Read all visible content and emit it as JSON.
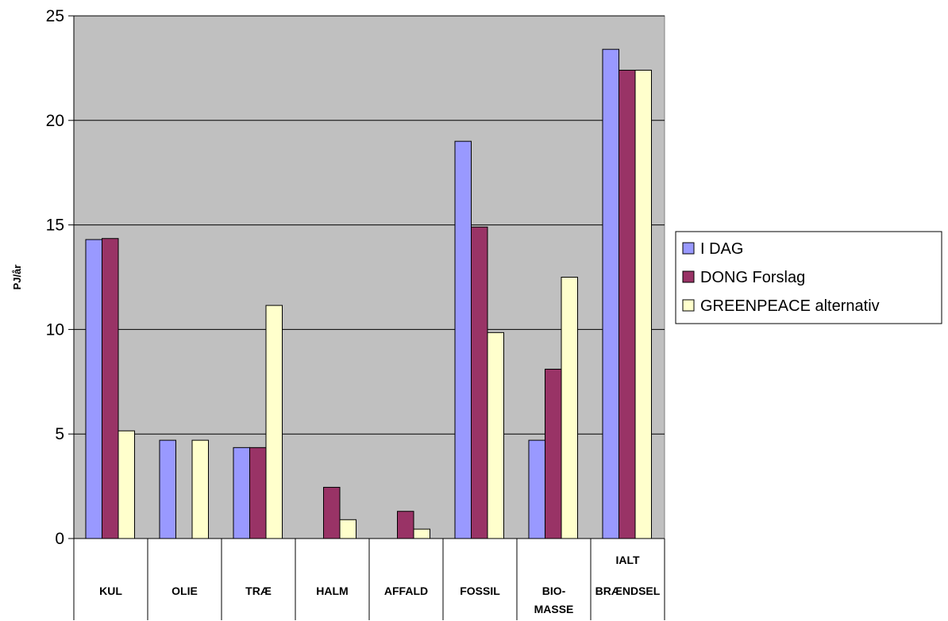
{
  "chart_data": {
    "type": "bar",
    "title": "",
    "xlabel": "",
    "ylabel": "PJ/år",
    "ylim": [
      0,
      25
    ],
    "yticks": [
      "0",
      "5",
      "10",
      "15",
      "20",
      "25"
    ],
    "grid": true,
    "legend_position": "right",
    "categories": [
      [
        "KUL"
      ],
      [
        "OLIE"
      ],
      [
        "TRÆ"
      ],
      [
        "HALM"
      ],
      [
        "AFFALD"
      ],
      [
        "FOSSIL"
      ],
      [
        "BIO-",
        "MASSE"
      ],
      [
        "IALT",
        "BRÆNDSEL"
      ]
    ],
    "series": [
      {
        "name": "I DAG",
        "color": "#9999ff",
        "values": [
          14.3,
          4.7,
          4.35,
          0,
          0,
          19.0,
          4.7,
          23.4
        ]
      },
      {
        "name": "DONG Forslag",
        "color": "#993366",
        "values": [
          14.35,
          0,
          4.35,
          2.45,
          1.3,
          14.9,
          8.1,
          22.4
        ]
      },
      {
        "name": "GREENPEACE alternativ",
        "color": "#ffffcc",
        "values": [
          5.15,
          4.7,
          11.15,
          0.9,
          0.45,
          9.85,
          12.5,
          22.4
        ]
      }
    ],
    "plot_background": "#c0c0c0"
  }
}
